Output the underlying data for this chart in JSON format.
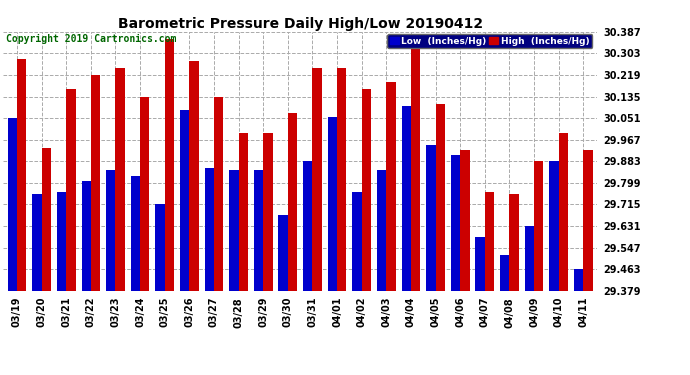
{
  "title": "Barometric Pressure Daily High/Low 20190412",
  "copyright": "Copyright 2019 Cartronics.com",
  "legend_low": "Low  (Inches/Hg)",
  "legend_high": "High  (Inches/Hg)",
  "dates": [
    "03/19",
    "03/20",
    "03/21",
    "03/22",
    "03/23",
    "03/24",
    "03/25",
    "03/26",
    "03/27",
    "03/28",
    "03/29",
    "03/30",
    "03/31",
    "04/01",
    "04/02",
    "04/03",
    "04/04",
    "04/05",
    "04/06",
    "04/07",
    "04/08",
    "04/09",
    "04/10",
    "04/11"
  ],
  "low": [
    30.051,
    29.757,
    29.763,
    29.805,
    29.847,
    29.827,
    29.715,
    30.083,
    29.857,
    29.847,
    29.847,
    29.673,
    29.883,
    30.057,
    29.763,
    29.847,
    30.099,
    29.947,
    29.909,
    29.589,
    29.519,
    29.631,
    29.883,
    29.463
  ],
  "high": [
    30.281,
    29.935,
    30.163,
    30.219,
    30.247,
    30.135,
    30.359,
    30.275,
    30.135,
    29.993,
    29.993,
    30.071,
    30.247,
    30.247,
    30.163,
    30.191,
    30.331,
    30.107,
    29.925,
    29.763,
    29.757,
    29.883,
    29.993,
    29.925
  ],
  "ylim_min": 29.379,
  "ylim_max": 30.387,
  "yticks": [
    29.379,
    29.463,
    29.547,
    29.631,
    29.715,
    29.799,
    29.883,
    29.967,
    30.051,
    30.135,
    30.219,
    30.303,
    30.387
  ],
  "bar_width": 0.38,
  "low_color": "#0000cc",
  "high_color": "#cc0000",
  "bg_color": "#ffffff",
  "grid_color": "#aaaaaa",
  "title_fontsize": 10,
  "copyright_fontsize": 7,
  "tick_fontsize": 7,
  "fig_width": 6.9,
  "fig_height": 3.75,
  "dpi": 100
}
